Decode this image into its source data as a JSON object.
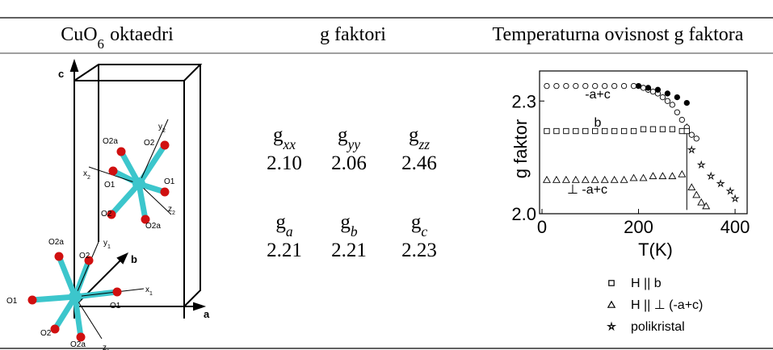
{
  "table": {
    "headers": [
      {
        "base": "CuO",
        "sub": "6",
        "tail": "oktaedri"
      },
      {
        "text": "g faktori"
      },
      {
        "text": "Temperaturna ovisnost g faktora"
      }
    ],
    "g_factors": [
      {
        "symbols": [
          {
            "base": "g",
            "sub": "xx"
          },
          {
            "base": "g",
            "sub": "yy"
          },
          {
            "base": "g",
            "sub": "zz"
          }
        ],
        "values": [
          "2.10",
          "2.06",
          "2.46"
        ]
      },
      {
        "symbols": [
          {
            "base": "g",
            "sub": "a"
          },
          {
            "base": "g",
            "sub": "b"
          },
          {
            "base": "g",
            "sub": "c"
          }
        ],
        "values": [
          "2.21",
          "2.21",
          "2.23"
        ]
      }
    ]
  },
  "diagram": {
    "axes": [
      "c",
      "a",
      "b"
    ],
    "labels": [
      {
        "base": "y",
        "sub": "2"
      },
      {
        "base": "O2"
      },
      {
        "base": "O2a"
      },
      {
        "base": "x",
        "sub": "2"
      },
      {
        "base": "O1"
      },
      {
        "base": "O1"
      },
      {
        "base": "O2"
      },
      {
        "base": "O2a"
      },
      {
        "base": "z",
        "sub": "2"
      },
      {
        "base": "O2a"
      },
      {
        "base": "O2"
      },
      {
        "base": "y",
        "sub": "1"
      },
      {
        "base": "O1"
      },
      {
        "base": "x",
        "sub": "1"
      },
      {
        "base": "O1"
      },
      {
        "base": "O2"
      },
      {
        "base": "O2a"
      },
      {
        "base": "z",
        "sub": "1"
      }
    ]
  },
  "chart_data": {
    "type": "scatter",
    "x_label": "T(K)",
    "y_label": "g faktor",
    "xlim": [
      -5,
      425
    ],
    "ylim": [
      2.0,
      2.38
    ],
    "xticks": [
      0,
      200,
      400
    ],
    "yticks": [
      {
        "value": 2.0,
        "label": "2.0"
      },
      {
        "value": 2.3,
        "label": "2.3"
      }
    ],
    "annotations": [
      "-a+c",
      "b",
      "⊥ -a+c"
    ],
    "series": [
      {
        "marker": "circle-open",
        "color": "#000000",
        "x": [
          10,
          30,
          50,
          70,
          90,
          110,
          130,
          150,
          170,
          190,
          210,
          220,
          230,
          240,
          250,
          260,
          270,
          280,
          290,
          300,
          310,
          320
        ],
        "values": [
          2.34,
          2.34,
          2.34,
          2.34,
          2.34,
          2.34,
          2.34,
          2.34,
          2.34,
          2.34,
          2.335,
          2.33,
          2.325,
          2.32,
          2.31,
          2.3,
          2.29,
          2.27,
          2.25,
          2.23,
          2.21,
          2.2
        ]
      },
      {
        "marker": "circle-filled",
        "color": "#000000",
        "x": [
          200,
          220,
          240,
          260,
          280,
          300
        ],
        "values": [
          2.34,
          2.335,
          2.33,
          2.32,
          2.31,
          2.295
        ]
      },
      {
        "marker": "square",
        "color": "#000000",
        "x": [
          10,
          30,
          50,
          70,
          90,
          110,
          130,
          150,
          170,
          190,
          210,
          230,
          250,
          270,
          290,
          300
        ],
        "values": [
          2.22,
          2.22,
          2.22,
          2.22,
          2.22,
          2.22,
          2.22,
          2.22,
          2.22,
          2.22,
          2.225,
          2.225,
          2.225,
          2.225,
          2.22,
          2.22
        ]
      },
      {
        "marker": "triangle",
        "color": "#000000",
        "x": [
          10,
          30,
          50,
          70,
          90,
          110,
          130,
          150,
          170,
          190,
          210,
          230,
          250,
          270,
          290,
          310,
          320,
          330,
          340
        ],
        "values": [
          2.09,
          2.09,
          2.09,
          2.09,
          2.09,
          2.09,
          2.09,
          2.09,
          2.09,
          2.095,
          2.095,
          2.1,
          2.1,
          2.1,
          2.105,
          2.07,
          2.05,
          2.03,
          2.02
        ]
      },
      {
        "marker": "star",
        "color": "#000000",
        "x": [
          310,
          330,
          350,
          370,
          390,
          400
        ],
        "values": [
          2.17,
          2.13,
          2.1,
          2.08,
          2.06,
          2.04
        ]
      }
    ],
    "legend": [
      {
        "marker": "square",
        "label": "H || b"
      },
      {
        "marker": "triangle",
        "label": "H || ⊥ (-a+c)"
      },
      {
        "marker": "star",
        "label": "polikristal"
      }
    ]
  }
}
